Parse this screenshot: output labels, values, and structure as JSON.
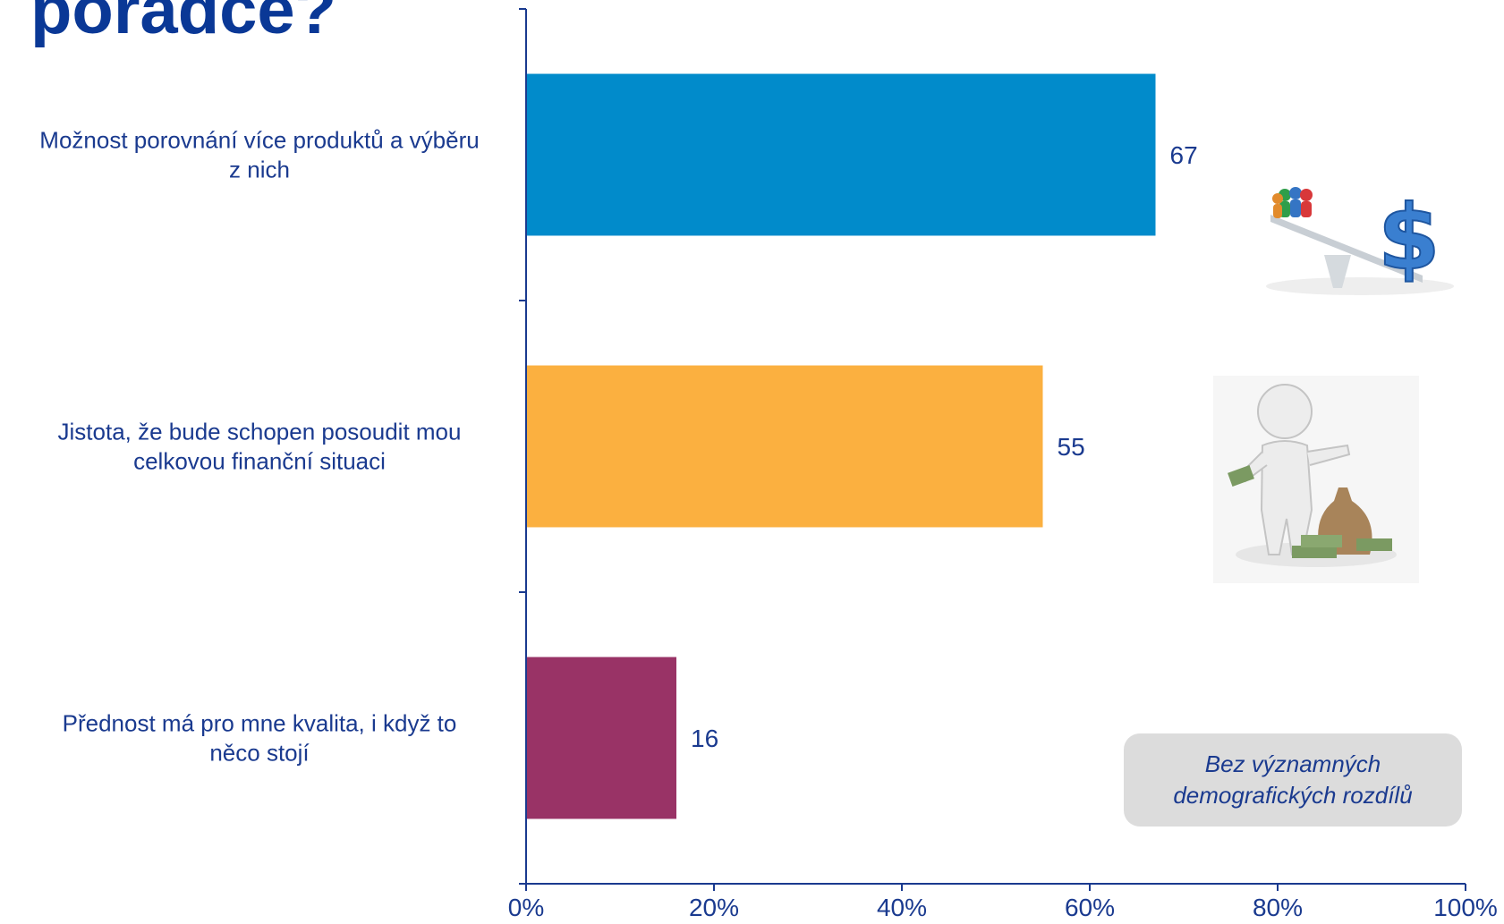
{
  "title_fragment": "poradce?",
  "note": {
    "line1": "Bez významných",
    "line2": "demografických rozdílů"
  },
  "icons": [
    "scale-people-dollar-icon",
    "person-money-bag-icon"
  ],
  "chart_data": {
    "type": "bar",
    "orientation": "horizontal",
    "categories": [
      [
        "Možnost porovnání více produktů a výběru",
        "z nich"
      ],
      [
        "Jistota, že bude schopen posoudit mou",
        "celkovou finanční situaci"
      ],
      [
        "Přednost má pro mne kvalita, i když to",
        "něco stojí"
      ]
    ],
    "values": [
      67,
      55,
      16
    ],
    "colors": [
      "#018bcb",
      "#fbb040",
      "#993366"
    ],
    "xlim": [
      0,
      100
    ],
    "xticks": [
      0,
      20,
      40,
      60,
      80,
      100
    ],
    "xtick_labels": [
      "0%",
      "20%",
      "40%",
      "60%",
      "80%",
      "100%"
    ],
    "axis_color": "#1a3a8f",
    "grid": false,
    "legend": "none"
  }
}
